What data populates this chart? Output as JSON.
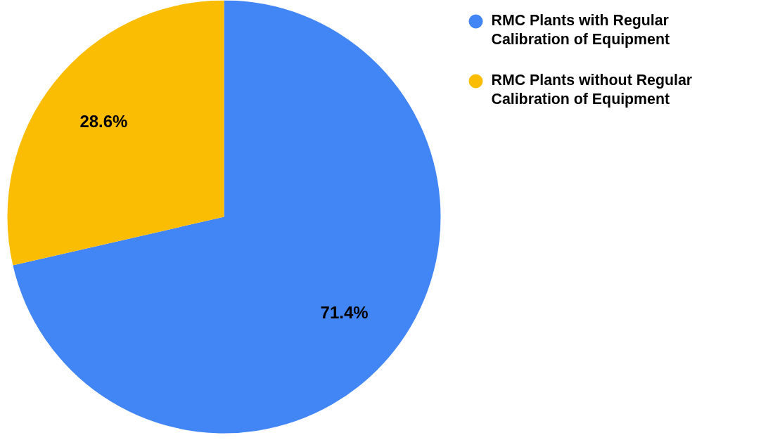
{
  "chart_data": {
    "type": "pie",
    "categories": [
      "RMC Plants with Regular Calibration of  Equipment",
      "RMC Plants without Regular Calibration of  Equipment"
    ],
    "values": [
      71.4,
      28.6
    ],
    "colors": [
      "#4285f4",
      "#fbbc04"
    ],
    "value_labels": [
      "71.4%",
      "28.6%"
    ],
    "legend": "top right"
  }
}
